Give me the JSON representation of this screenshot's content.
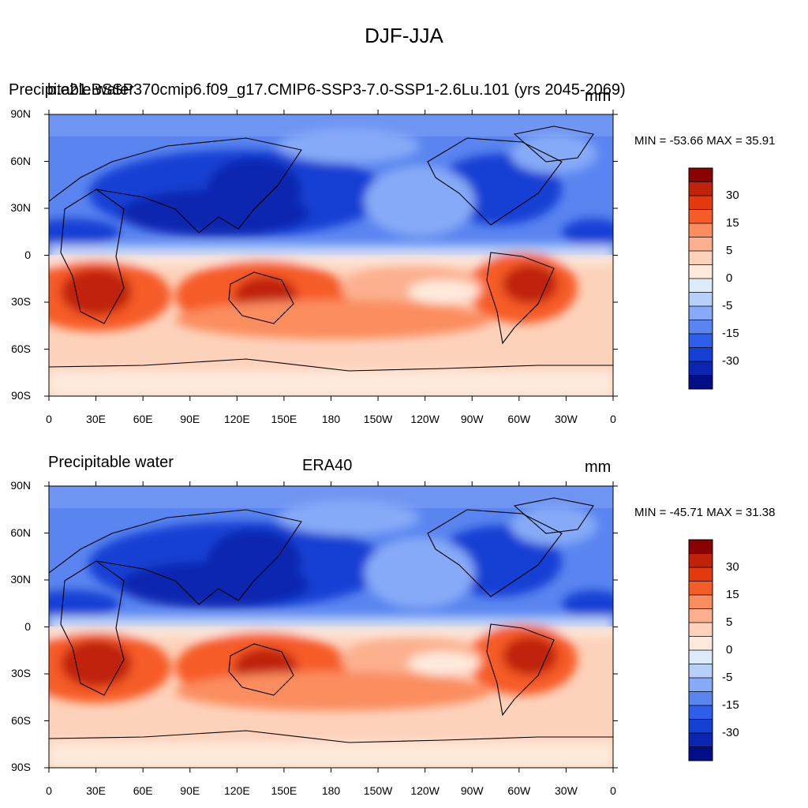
{
  "main_title": "DJF-JJA",
  "panels": [
    {
      "left_title": "Precipitable water",
      "center_title": "b.e21.BSSP370cmip6.f09_g17.CMIP6-SSP3-7.0-SSP1-2.6Lu.101 (yrs 2045-2069)",
      "right_title": "mm",
      "min_max": "MIN = -53.66 MAX =  35.91"
    },
    {
      "left_title": "Precipitable water",
      "center_title": "ERA40",
      "right_title": "mm",
      "min_max": "MIN = -45.71 MAX =  31.38"
    }
  ],
  "lat_labels": [
    "90N",
    "60N",
    "30N",
    "0",
    "30S",
    "60S",
    "90S"
  ],
  "lon_labels": [
    "0",
    "30E",
    "60E",
    "90E",
    "120E",
    "150E",
    "180",
    "150W",
    "120W",
    "90W",
    "60W",
    "30W",
    "0"
  ],
  "colorbar": {
    "labels": [
      "30",
      "15",
      "5",
      "0",
      "-5",
      "-15",
      "-30"
    ],
    "colors": [
      "#8b0000",
      "#c0230a",
      "#e3390c",
      "#f65c28",
      "#fb8d5f",
      "#fcb08e",
      "#fdd2bb",
      "#feeadc",
      "#dcebfa",
      "#b6d0f9",
      "#86aaf7",
      "#5a85f0",
      "#2e5eeb",
      "#1440d4",
      "#0a26b0",
      "#000f88"
    ]
  }
}
